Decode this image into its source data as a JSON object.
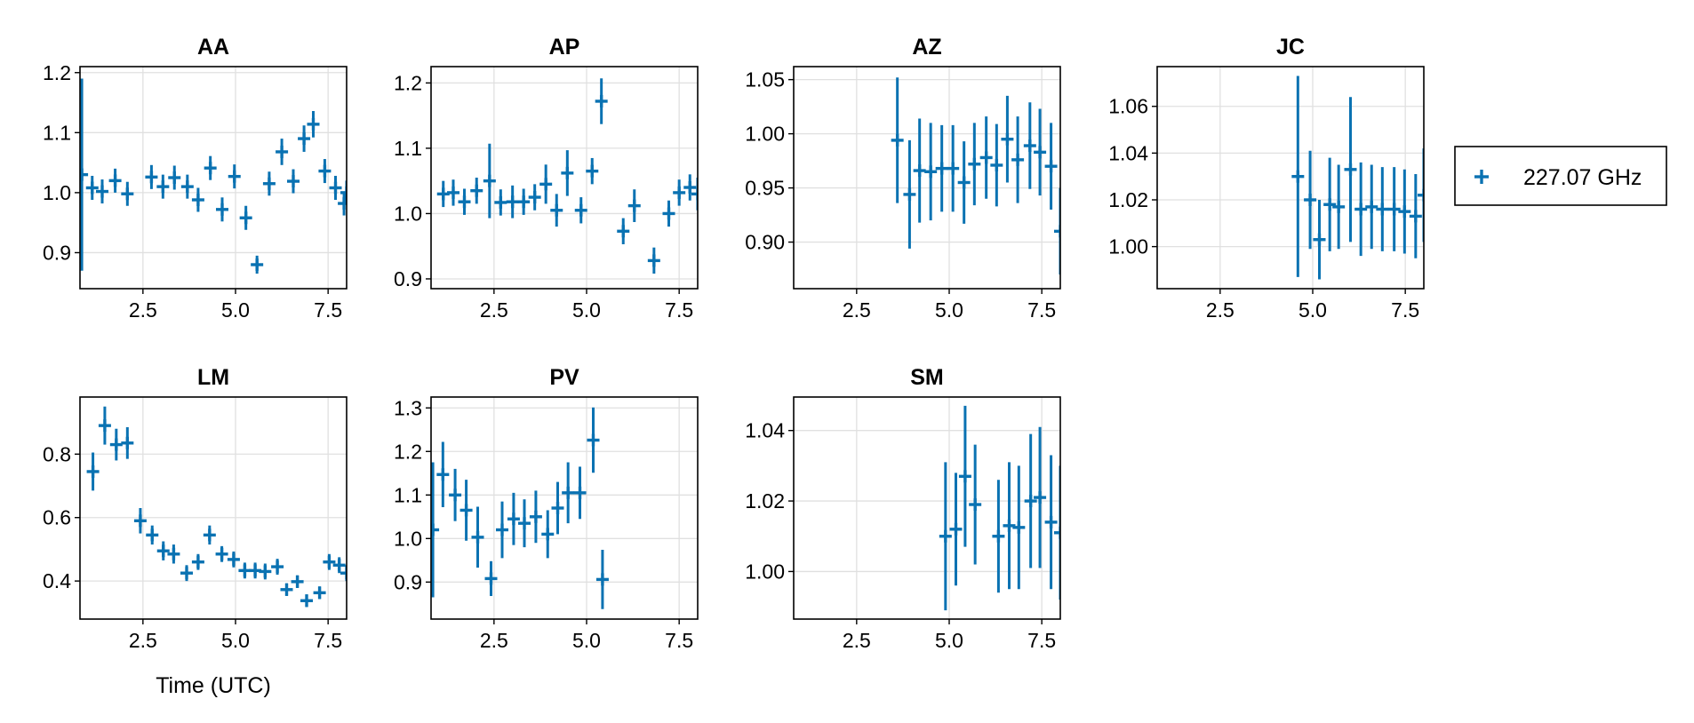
{
  "figure": {
    "xlabel": "Time (UTC)",
    "legend": {
      "label": "227.07 GHz",
      "color": "#0a72b2",
      "placement": "right"
    }
  },
  "chart_data": [
    {
      "type": "scatter",
      "title": "AA",
      "xlim": [
        0.8,
        8.0
      ],
      "ylim": [
        0.84,
        1.21
      ],
      "xticks": [
        2.5,
        5.0,
        7.5
      ],
      "xtick_labels": [
        "2.5",
        "5.0",
        "7.5"
      ],
      "yticks": [
        0.9,
        1.0,
        1.1,
        1.2
      ],
      "ytick_labels": [
        "0.9",
        "1.0",
        "1.1",
        "1.2"
      ],
      "series": [
        {
          "name": "227.07 GHz",
          "points": [
            {
              "x": 0.85,
              "y": 1.03,
              "err": 0.16
            },
            {
              "x": 1.13,
              "y": 1.008,
              "err": 0.02
            },
            {
              "x": 1.4,
              "y": 1.002,
              "err": 0.02
            },
            {
              "x": 1.75,
              "y": 1.02,
              "err": 0.02
            },
            {
              "x": 2.08,
              "y": 0.998,
              "err": 0.02
            },
            {
              "x": 2.73,
              "y": 1.026,
              "err": 0.02
            },
            {
              "x": 3.04,
              "y": 1.01,
              "err": 0.02
            },
            {
              "x": 3.35,
              "y": 1.025,
              "err": 0.02
            },
            {
              "x": 3.7,
              "y": 1.01,
              "err": 0.02
            },
            {
              "x": 3.99,
              "y": 0.988,
              "err": 0.02
            },
            {
              "x": 4.32,
              "y": 1.041,
              "err": 0.02
            },
            {
              "x": 4.64,
              "y": 0.972,
              "err": 0.02
            },
            {
              "x": 4.97,
              "y": 1.027,
              "err": 0.02
            },
            {
              "x": 5.28,
              "y": 0.958,
              "err": 0.02
            },
            {
              "x": 5.58,
              "y": 0.88,
              "err": 0.015
            },
            {
              "x": 5.91,
              "y": 1.015,
              "err": 0.02
            },
            {
              "x": 6.25,
              "y": 1.068,
              "err": 0.022
            },
            {
              "x": 6.56,
              "y": 1.019,
              "err": 0.02
            },
            {
              "x": 6.85,
              "y": 1.09,
              "err": 0.022
            },
            {
              "x": 7.1,
              "y": 1.114,
              "err": 0.022
            },
            {
              "x": 7.41,
              "y": 1.036,
              "err": 0.02
            },
            {
              "x": 7.7,
              "y": 1.008,
              "err": 0.02
            },
            {
              "x": 7.93,
              "y": 0.982,
              "err": 0.02
            },
            {
              "x": 8.0,
              "y": 1.0,
              "err": 0.02
            }
          ]
        }
      ]
    },
    {
      "type": "scatter",
      "title": "AP",
      "xlim": [
        0.8,
        8.0
      ],
      "ylim": [
        0.885,
        1.225
      ],
      "xticks": [
        2.5,
        5.0,
        7.5
      ],
      "xtick_labels": [
        "2.5",
        "5.0",
        "7.5"
      ],
      "yticks": [
        0.9,
        1.0,
        1.1,
        1.2
      ],
      "ytick_labels": [
        "0.9",
        "1.0",
        "1.1",
        "1.2"
      ],
      "series": [
        {
          "name": "227.07 GHz",
          "points": [
            {
              "x": 1.13,
              "y": 1.03,
              "err": 0.02
            },
            {
              "x": 1.4,
              "y": 1.032,
              "err": 0.02
            },
            {
              "x": 1.7,
              "y": 1.018,
              "err": 0.02
            },
            {
              "x": 2.03,
              "y": 1.035,
              "err": 0.02
            },
            {
              "x": 2.38,
              "y": 1.05,
              "err": 0.057
            },
            {
              "x": 2.68,
              "y": 1.017,
              "err": 0.02
            },
            {
              "x": 3.0,
              "y": 1.018,
              "err": 0.025
            },
            {
              "x": 3.3,
              "y": 1.018,
              "err": 0.02
            },
            {
              "x": 3.6,
              "y": 1.025,
              "err": 0.02
            },
            {
              "x": 3.9,
              "y": 1.045,
              "err": 0.03
            },
            {
              "x": 4.19,
              "y": 1.005,
              "err": 0.025
            },
            {
              "x": 4.48,
              "y": 1.062,
              "err": 0.035
            },
            {
              "x": 4.85,
              "y": 1.005,
              "err": 0.02
            },
            {
              "x": 5.15,
              "y": 1.065,
              "err": 0.02
            },
            {
              "x": 5.4,
              "y": 1.172,
              "err": 0.035
            },
            {
              "x": 5.99,
              "y": 0.973,
              "err": 0.02
            },
            {
              "x": 6.29,
              "y": 1.012,
              "err": 0.025
            },
            {
              "x": 6.82,
              "y": 0.928,
              "err": 0.02
            },
            {
              "x": 7.22,
              "y": 1.0,
              "err": 0.02
            },
            {
              "x": 7.5,
              "y": 1.032,
              "err": 0.02
            },
            {
              "x": 7.79,
              "y": 1.04,
              "err": 0.02
            },
            {
              "x": 8.0,
              "y": 1.03,
              "err": 0.025
            }
          ]
        }
      ]
    },
    {
      "type": "scatter",
      "title": "AZ",
      "xlim": [
        0.8,
        8.0
      ],
      "ylim": [
        0.857,
        1.062
      ],
      "xticks": [
        2.5,
        5.0,
        7.5
      ],
      "xtick_labels": [
        "2.5",
        "5.0",
        "7.5"
      ],
      "yticks": [
        0.9,
        0.95,
        1.0,
        1.05
      ],
      "ytick_labels": [
        "0.90",
        "0.95",
        "1.00",
        "1.05"
      ],
      "series": [
        {
          "name": "227.07 GHz",
          "points": [
            {
              "x": 3.6,
              "y": 0.994,
              "err": 0.058
            },
            {
              "x": 3.93,
              "y": 0.944,
              "err": 0.05
            },
            {
              "x": 4.2,
              "y": 0.966,
              "err": 0.048
            },
            {
              "x": 4.5,
              "y": 0.965,
              "err": 0.045
            },
            {
              "x": 4.8,
              "y": 0.968,
              "err": 0.04
            },
            {
              "x": 5.1,
              "y": 0.968,
              "err": 0.04
            },
            {
              "x": 5.4,
              "y": 0.955,
              "err": 0.038
            },
            {
              "x": 5.68,
              "y": 0.972,
              "err": 0.038
            },
            {
              "x": 6.0,
              "y": 0.978,
              "err": 0.038
            },
            {
              "x": 6.28,
              "y": 0.971,
              "err": 0.038
            },
            {
              "x": 6.57,
              "y": 0.995,
              "err": 0.04
            },
            {
              "x": 6.85,
              "y": 0.976,
              "err": 0.04
            },
            {
              "x": 7.18,
              "y": 0.989,
              "err": 0.04
            },
            {
              "x": 7.45,
              "y": 0.983,
              "err": 0.04
            },
            {
              "x": 7.75,
              "y": 0.97,
              "err": 0.04
            },
            {
              "x": 8.0,
              "y": 0.91,
              "err": 0.04
            }
          ]
        }
      ]
    },
    {
      "type": "scatter",
      "title": "JC",
      "xlim": [
        0.8,
        8.0
      ],
      "ylim": [
        0.982,
        1.077
      ],
      "xticks": [
        2.5,
        5.0,
        7.5
      ],
      "xtick_labels": [
        "2.5",
        "5.0",
        "7.5"
      ],
      "yticks": [
        1.0,
        1.02,
        1.04,
        1.06
      ],
      "ytick_labels": [
        "1.00",
        "1.02",
        "1.04",
        "1.06"
      ],
      "series": [
        {
          "name": "227.07 GHz",
          "points": [
            {
              "x": 4.6,
              "y": 1.03,
              "err": 0.043
            },
            {
              "x": 4.93,
              "y": 1.02,
              "err": 0.021
            },
            {
              "x": 5.18,
              "y": 1.003,
              "err": 0.017
            },
            {
              "x": 5.46,
              "y": 1.018,
              "err": 0.02
            },
            {
              "x": 5.7,
              "y": 1.017,
              "err": 0.018
            },
            {
              "x": 6.02,
              "y": 1.033,
              "err": 0.031
            },
            {
              "x": 6.3,
              "y": 1.016,
              "err": 0.02
            },
            {
              "x": 6.59,
              "y": 1.017,
              "err": 0.018
            },
            {
              "x": 6.88,
              "y": 1.016,
              "err": 0.018
            },
            {
              "x": 7.2,
              "y": 1.016,
              "err": 0.018
            },
            {
              "x": 7.48,
              "y": 1.015,
              "err": 0.018
            },
            {
              "x": 7.78,
              "y": 1.013,
              "err": 0.018
            },
            {
              "x": 8.0,
              "y": 1.022,
              "err": 0.02
            }
          ]
        }
      ]
    },
    {
      "type": "scatter",
      "title": "LM",
      "xlim": [
        0.8,
        8.0
      ],
      "ylim": [
        0.28,
        0.98
      ],
      "xticks": [
        2.5,
        5.0,
        7.5
      ],
      "xtick_labels": [
        "2.5",
        "5.0",
        "7.5"
      ],
      "yticks": [
        0.4,
        0.6,
        0.8
      ],
      "ytick_labels": [
        "0.4",
        "0.6",
        "0.8"
      ],
      "series": [
        {
          "name": "227.07 GHz",
          "points": [
            {
              "x": 1.15,
              "y": 0.745,
              "err": 0.06
            },
            {
              "x": 1.47,
              "y": 0.89,
              "err": 0.06
            },
            {
              "x": 1.78,
              "y": 0.83,
              "err": 0.05
            },
            {
              "x": 2.08,
              "y": 0.835,
              "err": 0.05
            },
            {
              "x": 2.43,
              "y": 0.59,
              "err": 0.04
            },
            {
              "x": 2.75,
              "y": 0.545,
              "err": 0.03
            },
            {
              "x": 3.05,
              "y": 0.495,
              "err": 0.03
            },
            {
              "x": 3.33,
              "y": 0.485,
              "err": 0.03
            },
            {
              "x": 3.68,
              "y": 0.425,
              "err": 0.025
            },
            {
              "x": 3.99,
              "y": 0.46,
              "err": 0.025
            },
            {
              "x": 4.3,
              "y": 0.545,
              "err": 0.03
            },
            {
              "x": 4.63,
              "y": 0.485,
              "err": 0.025
            },
            {
              "x": 4.95,
              "y": 0.468,
              "err": 0.025
            },
            {
              "x": 5.25,
              "y": 0.433,
              "err": 0.025
            },
            {
              "x": 5.53,
              "y": 0.433,
              "err": 0.025
            },
            {
              "x": 5.8,
              "y": 0.43,
              "err": 0.025
            },
            {
              "x": 6.13,
              "y": 0.445,
              "err": 0.025
            },
            {
              "x": 6.38,
              "y": 0.373,
              "err": 0.02
            },
            {
              "x": 6.67,
              "y": 0.398,
              "err": 0.02
            },
            {
              "x": 6.92,
              "y": 0.338,
              "err": 0.02
            },
            {
              "x": 7.27,
              "y": 0.363,
              "err": 0.02
            },
            {
              "x": 7.53,
              "y": 0.46,
              "err": 0.025
            },
            {
              "x": 7.8,
              "y": 0.45,
              "err": 0.025
            },
            {
              "x": 8.0,
              "y": 0.425,
              "err": 0.025
            }
          ]
        }
      ]
    },
    {
      "type": "scatter",
      "title": "PV",
      "xlim": [
        0.8,
        8.0
      ],
      "ylim": [
        0.815,
        1.325
      ],
      "xticks": [
        2.5,
        5.0,
        7.5
      ],
      "xtick_labels": [
        "2.5",
        "5.0",
        "7.5"
      ],
      "yticks": [
        0.9,
        1.0,
        1.1,
        1.2,
        1.3
      ],
      "ytick_labels": [
        "0.9",
        "1.0",
        "1.1",
        "1.2",
        "1.3"
      ],
      "series": [
        {
          "name": "227.07 GHz",
          "points": [
            {
              "x": 0.85,
              "y": 1.02,
              "err": 0.155
            },
            {
              "x": 1.12,
              "y": 1.147,
              "err": 0.075
            },
            {
              "x": 1.45,
              "y": 1.1,
              "err": 0.06
            },
            {
              "x": 1.75,
              "y": 1.065,
              "err": 0.07
            },
            {
              "x": 2.06,
              "y": 1.003,
              "err": 0.07
            },
            {
              "x": 2.42,
              "y": 0.908,
              "err": 0.04
            },
            {
              "x": 2.72,
              "y": 1.02,
              "err": 0.065
            },
            {
              "x": 3.03,
              "y": 1.045,
              "err": 0.06
            },
            {
              "x": 3.32,
              "y": 1.035,
              "err": 0.055
            },
            {
              "x": 3.63,
              "y": 1.05,
              "err": 0.06
            },
            {
              "x": 3.95,
              "y": 1.01,
              "err": 0.055
            },
            {
              "x": 4.22,
              "y": 1.07,
              "err": 0.06
            },
            {
              "x": 4.5,
              "y": 1.105,
              "err": 0.07
            },
            {
              "x": 4.82,
              "y": 1.105,
              "err": 0.06
            },
            {
              "x": 5.18,
              "y": 1.226,
              "err": 0.075
            },
            {
              "x": 5.43,
              "y": 0.906,
              "err": 0.068
            }
          ]
        }
      ]
    },
    {
      "type": "scatter",
      "title": "SM",
      "xlim": [
        0.8,
        8.0
      ],
      "ylim": [
        0.9865,
        1.0495
      ],
      "xticks": [
        2.5,
        5.0,
        7.5
      ],
      "xtick_labels": [
        "2.5",
        "5.0",
        "7.5"
      ],
      "yticks": [
        1.0,
        1.02,
        1.04
      ],
      "ytick_labels": [
        "1.00",
        "1.02",
        "1.04"
      ],
      "series": [
        {
          "name": "227.07 GHz",
          "points": [
            {
              "x": 4.9,
              "y": 1.01,
              "err": 0.021
            },
            {
              "x": 5.18,
              "y": 1.012,
              "err": 0.016
            },
            {
              "x": 5.43,
              "y": 1.027,
              "err": 0.02
            },
            {
              "x": 5.7,
              "y": 1.019,
              "err": 0.017
            },
            {
              "x": 6.33,
              "y": 1.01,
              "err": 0.016
            },
            {
              "x": 6.62,
              "y": 1.013,
              "err": 0.018
            },
            {
              "x": 6.88,
              "y": 1.0125,
              "err": 0.0175
            },
            {
              "x": 7.2,
              "y": 1.02,
              "err": 0.019
            },
            {
              "x": 7.45,
              "y": 1.021,
              "err": 0.02
            },
            {
              "x": 7.75,
              "y": 1.014,
              "err": 0.019
            },
            {
              "x": 8.0,
              "y": 1.011,
              "err": 0.019
            }
          ]
        }
      ]
    }
  ]
}
